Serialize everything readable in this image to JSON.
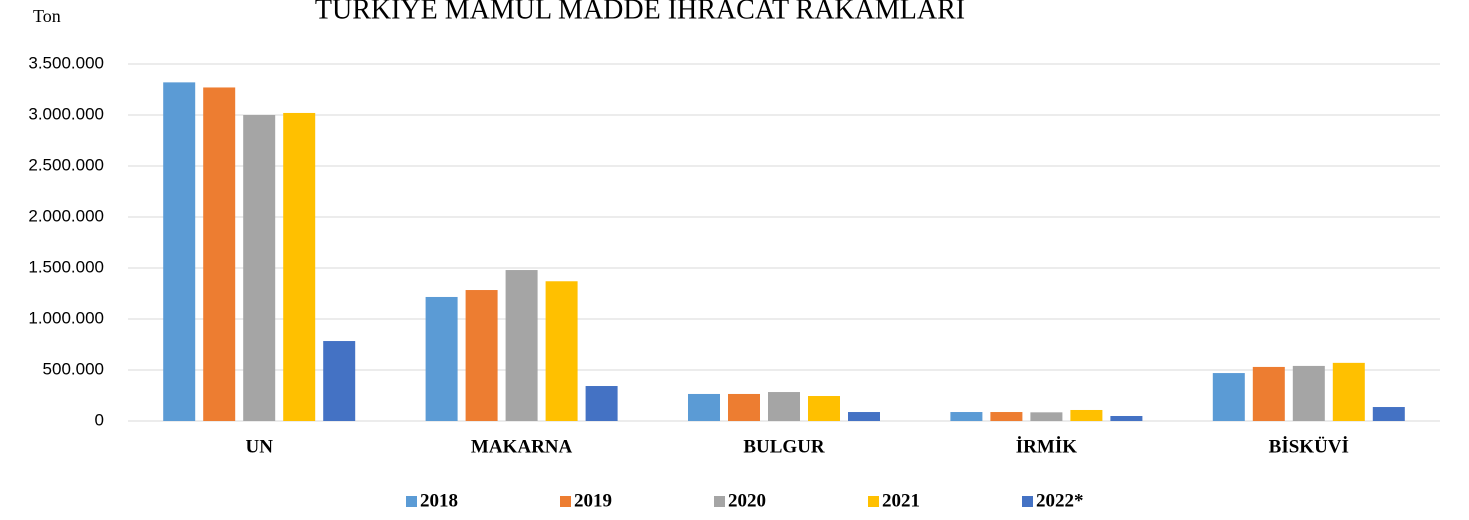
{
  "chart_data": {
    "type": "bar",
    "title": "TÜRKİYE MAMUL MADDE İHRACAT RAKAMLARI",
    "y_label": "Ton",
    "categories": [
      "UN",
      "MAKARNA",
      "BULGUR",
      "İRMİK",
      "BİSKÜVİ"
    ],
    "series": [
      {
        "name": "2018",
        "color": "#5b9bd5",
        "values": [
          3320000,
          1216000,
          265000,
          88000,
          470000
        ]
      },
      {
        "name": "2019",
        "color": "#ed7d31",
        "values": [
          3270000,
          1284000,
          265000,
          88000,
          530000
        ]
      },
      {
        "name": "2020",
        "color": "#a5a5a5",
        "values": [
          3000000,
          1480000,
          284000,
          85000,
          540000
        ]
      },
      {
        "name": "2021",
        "color": "#ffc000",
        "values": [
          3020000,
          1370000,
          245000,
          108000,
          570000
        ]
      },
      {
        "name": "2022*",
        "color": "#4472c4",
        "values": [
          784000,
          343000,
          88000,
          49000,
          137000
        ]
      }
    ],
    "ylim": [
      0,
      3500000
    ],
    "yticks": [
      0,
      {
        "value": 500000,
        "label": "500.000"
      },
      {
        "value": 1000000,
        "label": "1.000.000"
      },
      {
        "value": 1500000,
        "label": "1.500.000"
      },
      {
        "value": 2000000,
        "label": "2.000.000"
      },
      {
        "value": 2500000,
        "label": "2.500.000"
      },
      {
        "value": 3000000,
        "label": "3.000.000"
      },
      {
        "value": 3500000,
        "label": "3.500.000"
      }
    ],
    "grid": true,
    "legend": "bottom"
  }
}
